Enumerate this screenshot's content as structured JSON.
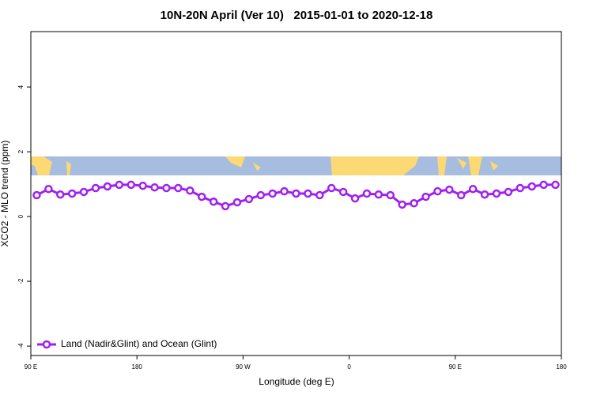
{
  "chart_data": {
    "type": "line",
    "title": "10N-20N April (Ver 10)   2015-01-01 to 2020-12-18",
    "xlabel": "Longitude (deg E)",
    "ylabel": "XCO2 - MLO trend (ppm)",
    "x": [
      95,
      105,
      115,
      125,
      135,
      145,
      155,
      165,
      175,
      185,
      195,
      205,
      215,
      225,
      235,
      245,
      255,
      265,
      275,
      285,
      295,
      305,
      315,
      325,
      335,
      345,
      355,
      365,
      375,
      385,
      395,
      405,
      415,
      425,
      435,
      445,
      455,
      465,
      475,
      485,
      495,
      505,
      515,
      525,
      535
    ],
    "series": [
      {
        "name": "Land (Nadir&Glint) and Ocean (Glint)",
        "color": "#a020f0",
        "values": [
          0.66,
          0.85,
          0.68,
          0.71,
          0.76,
          0.88,
          0.93,
          0.98,
          0.98,
          0.95,
          0.9,
          0.88,
          0.88,
          0.8,
          0.61,
          0.46,
          0.32,
          0.44,
          0.54,
          0.66,
          0.71,
          0.78,
          0.71,
          0.71,
          0.66,
          0.88,
          0.76,
          0.56,
          0.71,
          0.68,
          0.66,
          0.37,
          0.41,
          0.61,
          0.78,
          0.83,
          0.66,
          0.85,
          0.68,
          0.71,
          0.76,
          0.88,
          0.93,
          0.98,
          0.98
        ]
      }
    ],
    "xlim": [
      90,
      540
    ],
    "xticks": [
      {
        "value": 90,
        "label": "90 E"
      },
      180,
      {
        "value": 270,
        "label": "90 W"
      },
      {
        "value": 360,
        "label": "0"
      },
      {
        "value": 450,
        "label": "90 E"
      },
      {
        "value": 540,
        "label": "180"
      }
    ],
    "ylim": [
      -4.29,
      5.71
    ],
    "yticks": [
      -4,
      -2,
      0,
      2,
      4
    ],
    "grid": false,
    "legend": "bottom-left"
  }
}
